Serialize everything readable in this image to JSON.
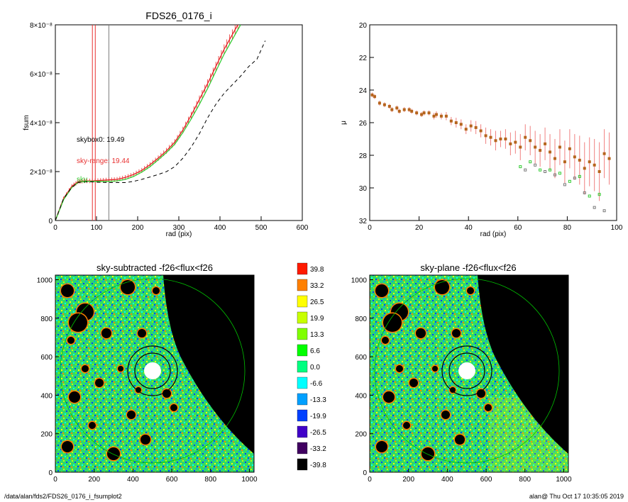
{
  "footer": {
    "path": "/data/alan/fds2/FDS26_0176_i_fsumplot2",
    "stamp": "alan@  Thu Oct 17 10:35:05 2019"
  },
  "chart_data": [
    {
      "id": "fsum",
      "type": "line",
      "title": "FDS26_0176_i",
      "xlabel": "rad (pix)",
      "ylabel": "fsum",
      "xlim": [
        0,
        600
      ],
      "ylim": [
        0,
        8e-08
      ],
      "xticks": [
        "0",
        "100",
        "200",
        "300",
        "400",
        "500",
        "600"
      ],
      "yticks": [
        "0",
        "2×10⁻⁸",
        "4×10⁻⁸",
        "6×10⁻⁸",
        "8×10⁻⁸"
      ],
      "vlines": [
        {
          "x": 90,
          "color": "#e83030"
        },
        {
          "x": 97,
          "color": "#e83030"
        },
        {
          "x": 130,
          "color": "#7a7a7a"
        }
      ],
      "annotations": [
        {
          "text": "skybox0: 19.49",
          "color": "#000000"
        },
        {
          "text": "sky-range: 19.44",
          "color": "#e83030"
        },
        {
          "text": "sky",
          "color": "#33cc33"
        }
      ],
      "series": [
        {
          "color": "#e02020",
          "style": "solid",
          "x": [
            0,
            20,
            40,
            55,
            70,
            90,
            110,
            130,
            150,
            170,
            190,
            210,
            230,
            250,
            270,
            290,
            310,
            330,
            350,
            370,
            390,
            410,
            430,
            450
          ],
          "y": [
            0,
            9e-09,
            1.4e-08,
            1.58e-08,
            1.62e-08,
            1.62e-08,
            1.64e-08,
            1.66e-08,
            1.68e-08,
            1.76e-08,
            1.88e-08,
            2.05e-08,
            2.28e-08,
            2.55e-08,
            2.85e-08,
            3.2e-08,
            3.7e-08,
            4.3e-08,
            4.95e-08,
            5.6e-08,
            6.3e-08,
            7e-08,
            7.6e-08,
            8.2e-08
          ]
        },
        {
          "color": "#33cc33",
          "style": "solid",
          "x": [
            0,
            20,
            40,
            55,
            70,
            90,
            110,
            130,
            150,
            170,
            190,
            210,
            230,
            250,
            270,
            290,
            310,
            330,
            350,
            370,
            390,
            410,
            430,
            450
          ],
          "y": [
            0,
            8.5e-09,
            1.35e-08,
            1.55e-08,
            1.6e-08,
            1.6e-08,
            1.6e-08,
            1.6e-08,
            1.62e-08,
            1.68e-08,
            1.8e-08,
            1.98e-08,
            2.2e-08,
            2.48e-08,
            2.78e-08,
            3.12e-08,
            3.6e-08,
            4.15e-08,
            4.75e-08,
            5.4e-08,
            6.1e-08,
            6.8e-08,
            7.4e-08,
            8e-08
          ]
        },
        {
          "color": "#000000",
          "style": "dashed",
          "x": [
            0,
            20,
            40,
            55,
            70,
            90,
            110,
            130,
            150,
            170,
            190,
            210,
            230,
            250,
            270,
            290,
            310,
            330,
            350,
            370,
            390,
            410,
            430,
            450,
            470,
            490,
            510
          ],
          "y": [
            0,
            9e-09,
            1.35e-08,
            1.55e-08,
            1.58e-08,
            1.58e-08,
            1.56e-08,
            1.55e-08,
            1.55e-08,
            1.55e-08,
            1.6e-08,
            1.68e-08,
            1.78e-08,
            1.88e-08,
            2e-08,
            2.2e-08,
            2.55e-08,
            3e-08,
            3.55e-08,
            4.2e-08,
            4.75e-08,
            5.2e-08,
            5.55e-08,
            5.9e-08,
            6.3e-08,
            6.6e-08,
            7.35e-08
          ]
        }
      ]
    },
    {
      "id": "mu",
      "type": "scatter",
      "xlabel": "rad (pix)",
      "ylabel": "μ",
      "xlim": [
        0,
        100
      ],
      "ylim": [
        32,
        20
      ],
      "xticks": [
        "0",
        "20",
        "40",
        "60",
        "80",
        "100"
      ],
      "yticks": [
        "20",
        "22",
        "24",
        "26",
        "28",
        "30",
        "32"
      ],
      "series": [
        {
          "color": "#c0392b",
          "x": [
            1,
            2,
            4,
            6,
            8,
            9,
            11,
            12,
            14,
            16,
            17,
            19,
            21,
            22,
            24,
            26,
            27,
            29,
            31,
            33,
            35,
            37,
            39,
            41,
            43,
            45,
            47,
            49,
            51,
            53,
            55,
            57,
            59,
            61,
            63,
            65,
            67,
            69,
            71,
            73,
            75,
            77,
            79,
            81,
            83,
            85,
            87,
            89,
            91,
            93,
            95,
            97
          ],
          "y": [
            24.3,
            24.4,
            24.8,
            24.9,
            25.0,
            25.2,
            25.1,
            25.3,
            25.2,
            25.2,
            25.3,
            25.4,
            25.5,
            25.4,
            25.4,
            25.6,
            25.5,
            25.6,
            25.6,
            25.9,
            26.0,
            26.1,
            26.4,
            26.2,
            26.3,
            26.5,
            26.8,
            26.9,
            27.1,
            27.0,
            27.0,
            27.3,
            27.2,
            27.5,
            26.9,
            27.1,
            27.5,
            27.7,
            27.3,
            27.8,
            28.2,
            27.5,
            28.4,
            27.6,
            28.1,
            28.3,
            28.8,
            28.4,
            28.6,
            29.0,
            27.9,
            28.2
          ],
          "err": [
            0.15,
            0.15,
            0.15,
            0.15,
            0.15,
            0.15,
            0.15,
            0.15,
            0.15,
            0.15,
            0.15,
            0.15,
            0.15,
            0.15,
            0.15,
            0.2,
            0.2,
            0.2,
            0.25,
            0.25,
            0.3,
            0.3,
            0.3,
            0.35,
            0.4,
            0.4,
            0.5,
            0.5,
            0.6,
            0.5,
            0.6,
            0.7,
            0.7,
            0.8,
            0.8,
            0.9,
            1.0,
            1.0,
            1.0,
            1.1,
            1.2,
            1.1,
            1.3,
            1.2,
            1.4,
            1.5,
            1.6,
            1.5,
            1.6,
            1.8,
            1.5,
            1.6
          ]
        },
        {
          "color": "#33cc33",
          "x": [
            61,
            65,
            69,
            73,
            77,
            81,
            85,
            89,
            93
          ],
          "y": [
            28.7,
            28.4,
            28.9,
            28.9,
            29.1,
            29.6,
            29.3,
            30.5,
            30.4
          ]
        },
        {
          "color": "#7a7a7a",
          "x": [
            63,
            67,
            71,
            75,
            79,
            83,
            87,
            91,
            95
          ],
          "y": [
            28.9,
            28.6,
            29.0,
            29.2,
            29.8,
            29.4,
            30.3,
            31.2,
            31.4
          ]
        }
      ]
    },
    {
      "id": "skysub",
      "type": "heatmap",
      "title": "sky-subtracted -f26<flux<f26",
      "xlim": [
        0,
        1024
      ],
      "ylim": [
        0,
        1024
      ],
      "xticks": [
        "0",
        "200",
        "400",
        "600",
        "800",
        "1000"
      ],
      "yticks": [
        "0",
        "200",
        "400",
        "600",
        "800",
        "1000"
      ]
    },
    {
      "id": "skyplane",
      "type": "heatmap",
      "title": "sky-plane -f26<flux<f26",
      "xlim": [
        0,
        1024
      ],
      "ylim": [
        0,
        1024
      ],
      "xticks": [
        "0",
        "200",
        "400",
        "600",
        "800",
        "1000"
      ],
      "yticks": [
        "0",
        "200",
        "400",
        "600",
        "800",
        "1000"
      ]
    },
    {
      "id": "colorbar",
      "type": "table",
      "labels": [
        "39.8",
        "33.2",
        "26.5",
        "19.9",
        "13.3",
        "6.6",
        "0.0",
        "-6.6",
        "-13.3",
        "-19.9",
        "-26.5",
        "-33.2",
        "-39.8"
      ],
      "colors": [
        "#ff1a00",
        "#ff8000",
        "#ffff00",
        "#c8ff00",
        "#80ff00",
        "#00ff00",
        "#00ff80",
        "#00ffff",
        "#00a0ff",
        "#0040ff",
        "#4000c8",
        "#400060",
        "#000000"
      ]
    }
  ]
}
